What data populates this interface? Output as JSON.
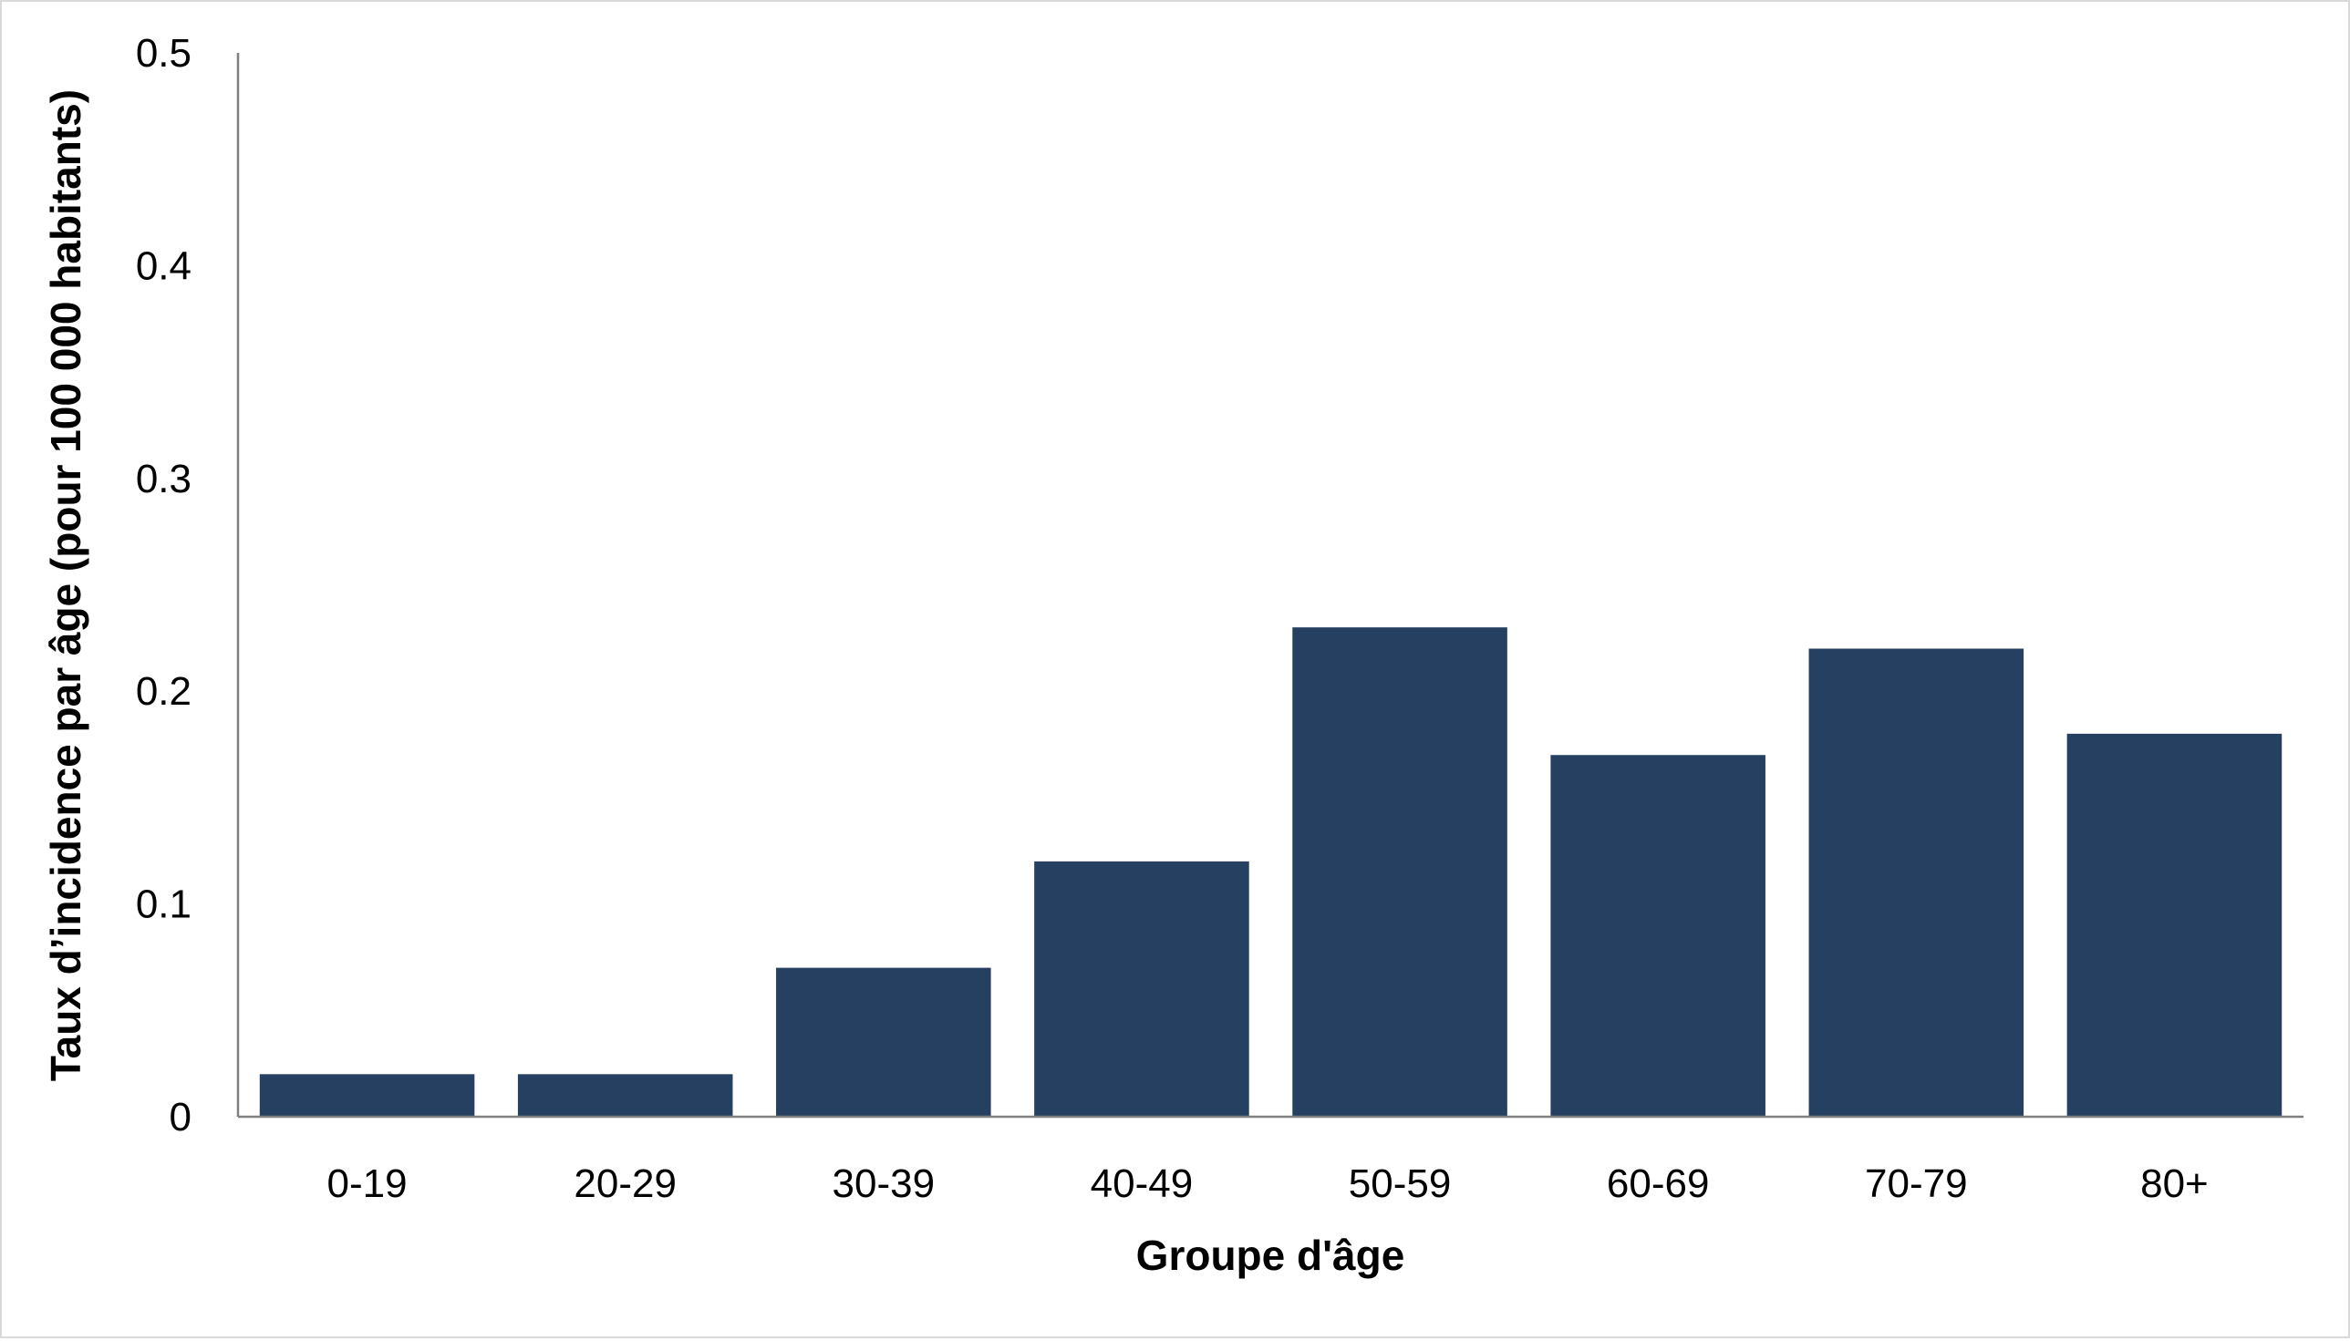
{
  "chart_data": {
    "type": "bar",
    "categories": [
      "0-19",
      "20-29",
      "30-39",
      "40-49",
      "50-59",
      "60-69",
      "70-79",
      "80+"
    ],
    "values": [
      0.02,
      0.02,
      0.07,
      0.12,
      0.23,
      0.17,
      0.22,
      0.18
    ],
    "xlabel": "Groupe d'âge",
    "ylabel": "Taux d’incidence par âge (pour 100 000 habitants)",
    "ylim": [
      0,
      0.5
    ],
    "yticks": [
      "0",
      "0.1",
      "0.2",
      "0.3",
      "0.4",
      "0.5"
    ],
    "bar_color": "#264061",
    "grid": false,
    "legend": "none"
  }
}
